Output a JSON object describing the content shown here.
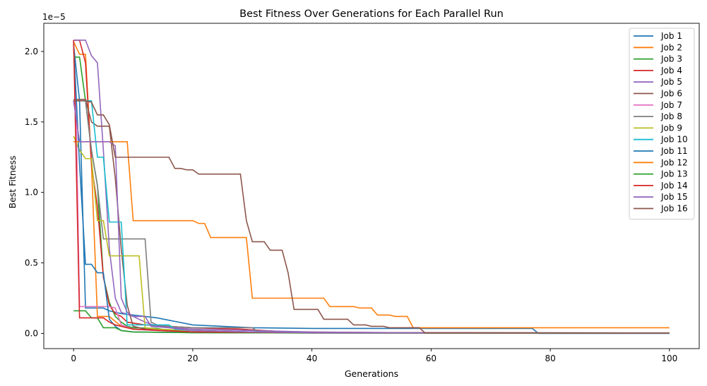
{
  "chart_data": {
    "type": "line",
    "title": "Best Fitness Over Generations for Each Parallel Run",
    "xlabel": "Generations",
    "ylabel": "Best Fitness",
    "y_offset_label": "1e−5",
    "xlim": [
      -5,
      105
    ],
    "ylim": [
      -0.108,
      2.2
    ],
    "x_ticks": [
      0,
      20,
      40,
      60,
      80,
      100
    ],
    "y_ticks": [
      0.0,
      0.5,
      1.0,
      1.5,
      2.0
    ],
    "y_tick_labels": [
      "0.0",
      "0.5",
      "1.0",
      "1.5",
      "2.0"
    ],
    "grid": false,
    "legend_position": "upper-right",
    "series": [
      {
        "name": "Job 1",
        "color": "#1f77b4",
        "points": [
          [
            0,
            2.05
          ],
          [
            1,
            1.65
          ],
          [
            2,
            0.18
          ],
          [
            3,
            0.18
          ],
          [
            4,
            0.18
          ],
          [
            5,
            0.18
          ],
          [
            6,
            0.16
          ],
          [
            8,
            0.14
          ],
          [
            10,
            0.13
          ],
          [
            14,
            0.11
          ],
          [
            20,
            0.06
          ],
          [
            30,
            0.04
          ],
          [
            40,
            0.035
          ],
          [
            50,
            0.035
          ],
          [
            60,
            0.035
          ],
          [
            77,
            0.035
          ],
          [
            78,
            0.0
          ],
          [
            100,
            0.0
          ]
        ]
      },
      {
        "name": "Job 2",
        "color": "#ff7f0e",
        "points": [
          [
            0,
            2.07
          ],
          [
            1,
            1.98
          ],
          [
            2,
            1.98
          ],
          [
            3,
            1.2
          ],
          [
            4,
            0.12
          ],
          [
            6,
            0.12
          ],
          [
            8,
            0.05
          ],
          [
            10,
            0.03
          ],
          [
            14,
            0.02
          ],
          [
            20,
            0.01
          ],
          [
            30,
            0.01
          ],
          [
            40,
            0.005
          ],
          [
            60,
            0.005
          ],
          [
            80,
            0.003
          ],
          [
            100,
            0.003
          ]
        ]
      },
      {
        "name": "Job 3",
        "color": "#2ca02c",
        "points": [
          [
            0,
            1.96
          ],
          [
            1,
            1.96
          ],
          [
            2,
            1.65
          ],
          [
            3,
            1.3
          ],
          [
            4,
            1.05
          ],
          [
            5,
            0.4
          ],
          [
            6,
            0.22
          ],
          [
            7,
            0.12
          ],
          [
            8,
            0.08
          ],
          [
            9,
            0.05
          ],
          [
            10,
            0.04
          ],
          [
            14,
            0.035
          ],
          [
            16,
            0.02
          ],
          [
            20,
            0.01
          ],
          [
            30,
            0.005
          ],
          [
            40,
            0.003
          ],
          [
            60,
            0.002
          ],
          [
            100,
            0.002
          ]
        ]
      },
      {
        "name": "Job 4",
        "color": "#d62728",
        "points": [
          [
            0,
            2.08
          ],
          [
            1,
            2.08
          ],
          [
            2,
            1.92
          ],
          [
            3,
            1.2
          ],
          [
            4,
            0.9
          ],
          [
            5,
            0.4
          ],
          [
            6,
            0.2
          ],
          [
            7,
            0.14
          ],
          [
            8,
            0.12
          ],
          [
            9,
            0.08
          ],
          [
            12,
            0.06
          ],
          [
            16,
            0.05
          ],
          [
            20,
            0.04
          ],
          [
            28,
            0.03
          ],
          [
            36,
            0.01
          ],
          [
            60,
            0.003
          ],
          [
            100,
            0.003
          ]
        ]
      },
      {
        "name": "Job 5",
        "color": "#9467bd",
        "points": [
          [
            0,
            2.08
          ],
          [
            1,
            2.08
          ],
          [
            2,
            2.08
          ],
          [
            3,
            1.97
          ],
          [
            4,
            1.92
          ],
          [
            5,
            1.3
          ],
          [
            6,
            0.6
          ],
          [
            7,
            0.25
          ],
          [
            8,
            0.15
          ],
          [
            10,
            0.12
          ],
          [
            12,
            0.08
          ],
          [
            14,
            0.05
          ],
          [
            20,
            0.03
          ],
          [
            30,
            0.02
          ],
          [
            40,
            0.01
          ],
          [
            60,
            0.003
          ],
          [
            100,
            0.003
          ]
        ]
      },
      {
        "name": "Job 6",
        "color": "#8c564b",
        "points": [
          [
            0,
            1.66
          ],
          [
            1,
            1.66
          ],
          [
            2,
            1.66
          ],
          [
            3,
            1.5
          ],
          [
            4,
            1.47
          ],
          [
            5,
            1.47
          ],
          [
            6,
            1.47
          ],
          [
            7,
            1.1
          ],
          [
            8,
            0.6
          ],
          [
            9,
            0.2
          ],
          [
            10,
            0.05
          ],
          [
            12,
            0.03
          ],
          [
            20,
            0.02
          ],
          [
            30,
            0.01
          ],
          [
            40,
            0.005
          ],
          [
            60,
            0.003
          ],
          [
            100,
            0.003
          ]
        ]
      },
      {
        "name": "Job 7",
        "color": "#e377c2",
        "points": [
          [
            0,
            2.08
          ],
          [
            0.5,
            1.4
          ],
          [
            1,
            0.19
          ],
          [
            2,
            0.19
          ],
          [
            3,
            0.19
          ],
          [
            4,
            0.19
          ],
          [
            5,
            0.19
          ],
          [
            6,
            0.19
          ],
          [
            7,
            0.18
          ],
          [
            8,
            0.06
          ],
          [
            10,
            0.03
          ],
          [
            14,
            0.02
          ],
          [
            20,
            0.01
          ],
          [
            40,
            0.003
          ],
          [
            100,
            0.003
          ]
        ]
      },
      {
        "name": "Job 8",
        "color": "#7f7f7f",
        "points": [
          [
            0,
            1.65
          ],
          [
            1,
            1.65
          ],
          [
            2,
            1.65
          ],
          [
            3,
            1.3
          ],
          [
            4,
            1.05
          ],
          [
            5,
            0.67
          ],
          [
            6,
            0.67
          ],
          [
            7,
            0.67
          ],
          [
            8,
            0.67
          ],
          [
            10,
            0.67
          ],
          [
            12,
            0.67
          ],
          [
            13,
            0.08
          ],
          [
            14,
            0.06
          ],
          [
            16,
            0.05
          ],
          [
            20,
            0.04
          ],
          [
            25,
            0.04
          ],
          [
            30,
            0.04
          ],
          [
            31,
            0.01
          ],
          [
            40,
            0.005
          ],
          [
            60,
            0.003
          ],
          [
            100,
            0.003
          ]
        ]
      },
      {
        "name": "Job 9",
        "color": "#bcbd22",
        "points": [
          [
            0,
            1.4
          ],
          [
            1,
            1.3
          ],
          [
            2,
            1.24
          ],
          [
            3,
            1.24
          ],
          [
            4,
            0.8
          ],
          [
            5,
            0.8
          ],
          [
            6,
            0.55
          ],
          [
            7,
            0.55
          ],
          [
            8,
            0.55
          ],
          [
            10,
            0.55
          ],
          [
            11,
            0.55
          ],
          [
            12,
            0.04
          ],
          [
            14,
            0.03
          ],
          [
            20,
            0.02
          ],
          [
            30,
            0.01
          ],
          [
            40,
            0.005
          ],
          [
            100,
            0.003
          ]
        ]
      },
      {
        "name": "Job 10",
        "color": "#17becf",
        "points": [
          [
            0,
            1.65
          ],
          [
            1,
            1.65
          ],
          [
            2,
            1.65
          ],
          [
            3,
            1.65
          ],
          [
            4,
            1.25
          ],
          [
            5,
            1.25
          ],
          [
            6,
            0.79
          ],
          [
            7,
            0.79
          ],
          [
            8,
            0.79
          ],
          [
            9,
            0.06
          ],
          [
            10,
            0.06
          ],
          [
            12,
            0.06
          ],
          [
            16,
            0.06
          ],
          [
            17,
            0.03
          ],
          [
            20,
            0.02
          ],
          [
            30,
            0.01
          ],
          [
            40,
            0.005
          ],
          [
            100,
            0.003
          ]
        ]
      },
      {
        "name": "Job 11",
        "color": "#1f77b4",
        "points": [
          [
            0,
            2.05
          ],
          [
            1,
            1.2
          ],
          [
            2,
            0.49
          ],
          [
            3,
            0.49
          ],
          [
            4,
            0.43
          ],
          [
            5,
            0.43
          ],
          [
            6,
            0.1
          ],
          [
            7,
            0.05
          ],
          [
            8,
            0.02
          ],
          [
            10,
            0.01
          ],
          [
            20,
            0.005
          ],
          [
            40,
            0.003
          ],
          [
            100,
            0.003
          ]
        ]
      },
      {
        "name": "Job 12",
        "color": "#ff7f0e",
        "points": [
          [
            0,
            1.36
          ],
          [
            1,
            1.36
          ],
          [
            2,
            1.36
          ],
          [
            4,
            1.36
          ],
          [
            6,
            1.36
          ],
          [
            8,
            1.36
          ],
          [
            9,
            1.36
          ],
          [
            10,
            0.8
          ],
          [
            11,
            0.8
          ],
          [
            15,
            0.8
          ],
          [
            20,
            0.8
          ],
          [
            21,
            0.78
          ],
          [
            22,
            0.78
          ],
          [
            23,
            0.68
          ],
          [
            24,
            0.68
          ],
          [
            28,
            0.68
          ],
          [
            29,
            0.68
          ],
          [
            30,
            0.25
          ],
          [
            35,
            0.25
          ],
          [
            40,
            0.25
          ],
          [
            42,
            0.25
          ],
          [
            43,
            0.19
          ],
          [
            47,
            0.19
          ],
          [
            48,
            0.18
          ],
          [
            50,
            0.18
          ],
          [
            51,
            0.13
          ],
          [
            53,
            0.13
          ],
          [
            54,
            0.12
          ],
          [
            56,
            0.12
          ],
          [
            57,
            0.04
          ],
          [
            60,
            0.04
          ],
          [
            80,
            0.04
          ],
          [
            100,
            0.04
          ]
        ]
      },
      {
        "name": "Job 13",
        "color": "#2ca02c",
        "points": [
          [
            0,
            0.16
          ],
          [
            1,
            0.16
          ],
          [
            2,
            0.16
          ],
          [
            3,
            0.11
          ],
          [
            4,
            0.11
          ],
          [
            5,
            0.04
          ],
          [
            6,
            0.04
          ],
          [
            7,
            0.04
          ],
          [
            8,
            0.02
          ],
          [
            10,
            0.01
          ],
          [
            20,
            0.005
          ],
          [
            40,
            0.003
          ],
          [
            100,
            0.003
          ]
        ]
      },
      {
        "name": "Job 14",
        "color": "#d62728",
        "points": [
          [
            0,
            2.08
          ],
          [
            1,
            0.11
          ],
          [
            2,
            0.11
          ],
          [
            3,
            0.11
          ],
          [
            4,
            0.11
          ],
          [
            5,
            0.11
          ],
          [
            6,
            0.08
          ],
          [
            7,
            0.06
          ],
          [
            8,
            0.05
          ],
          [
            10,
            0.03
          ],
          [
            15,
            0.02
          ],
          [
            20,
            0.01
          ],
          [
            40,
            0.005
          ],
          [
            100,
            0.003
          ]
        ]
      },
      {
        "name": "Job 15",
        "color": "#9467bd",
        "points": [
          [
            0,
            1.65
          ],
          [
            1,
            1.36
          ],
          [
            2,
            1.36
          ],
          [
            4,
            1.36
          ],
          [
            6,
            1.36
          ],
          [
            7,
            1.33
          ],
          [
            8,
            0.25
          ],
          [
            9,
            0.15
          ],
          [
            10,
            0.12
          ],
          [
            12,
            0.12
          ],
          [
            13,
            0.05
          ],
          [
            16,
            0.04
          ],
          [
            20,
            0.02
          ],
          [
            30,
            0.01
          ],
          [
            40,
            0.005
          ],
          [
            100,
            0.003
          ]
        ]
      },
      {
        "name": "Job 16",
        "color": "#8c564b",
        "points": [
          [
            0,
            1.65
          ],
          [
            1,
            1.65
          ],
          [
            2,
            1.65
          ],
          [
            3,
            1.64
          ],
          [
            4,
            1.55
          ],
          [
            5,
            1.55
          ],
          [
            6,
            1.48
          ],
          [
            7,
            1.25
          ],
          [
            8,
            1.25
          ],
          [
            9,
            1.25
          ],
          [
            10,
            1.25
          ],
          [
            12,
            1.25
          ],
          [
            14,
            1.25
          ],
          [
            16,
            1.25
          ],
          [
            17,
            1.17
          ],
          [
            18,
            1.17
          ],
          [
            19,
            1.16
          ],
          [
            20,
            1.16
          ],
          [
            21,
            1.13
          ],
          [
            22,
            1.13
          ],
          [
            26,
            1.13
          ],
          [
            28,
            1.13
          ],
          [
            29,
            0.8
          ],
          [
            30,
            0.65
          ],
          [
            32,
            0.65
          ],
          [
            33,
            0.59
          ],
          [
            35,
            0.59
          ],
          [
            36,
            0.43
          ],
          [
            37,
            0.17
          ],
          [
            38,
            0.17
          ],
          [
            40,
            0.17
          ],
          [
            41,
            0.17
          ],
          [
            42,
            0.1
          ],
          [
            45,
            0.1
          ],
          [
            46,
            0.1
          ],
          [
            47,
            0.06
          ],
          [
            49,
            0.06
          ],
          [
            50,
            0.05
          ],
          [
            52,
            0.05
          ],
          [
            53,
            0.04
          ],
          [
            57,
            0.04
          ],
          [
            58,
            0.04
          ],
          [
            59,
            0.003
          ],
          [
            60,
            0.003
          ],
          [
            80,
            0.003
          ],
          [
            100,
            0.003
          ]
        ]
      }
    ]
  }
}
